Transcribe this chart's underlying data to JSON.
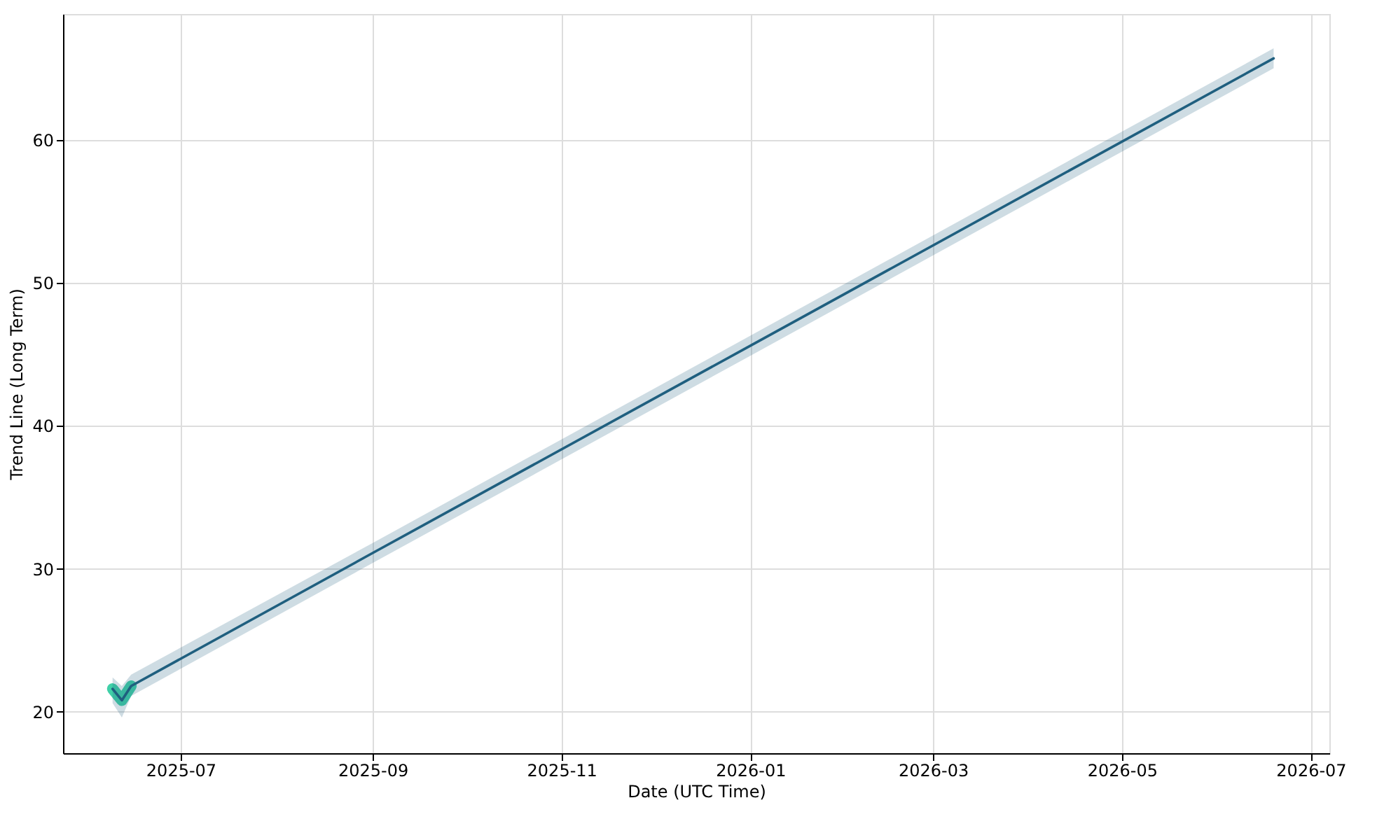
{
  "chart_data": {
    "type": "line",
    "xlabel": "Date (UTC Time)",
    "ylabel": "Trend Line (Long Term)",
    "xlim": [
      "2025-05-24",
      "2026-07-07"
    ],
    "ylim": [
      17.1,
      68.8
    ],
    "xticks": [
      {
        "value": "2025-07-01",
        "label": "2025-07"
      },
      {
        "value": "2025-09-01",
        "label": "2025-09"
      },
      {
        "value": "2025-11-01",
        "label": "2025-11"
      },
      {
        "value": "2026-01-01",
        "label": "2026-01"
      },
      {
        "value": "2026-03-01",
        "label": "2026-03"
      },
      {
        "value": "2026-05-01",
        "label": "2026-05"
      },
      {
        "value": "2026-07-01",
        "label": "2026-07"
      }
    ],
    "yticks": [
      20,
      30,
      40,
      50,
      60
    ],
    "grid": true,
    "line_style": "solid",
    "marker": "none",
    "series": [
      {
        "color": "#40d0a8",
        "x": [
          "2025-06-09",
          "2025-06-12",
          "2025-06-15"
        ],
        "values": [
          21.6,
          20.8,
          21.8
        ]
      },
      {
        "color": "#1f5f7f",
        "x": [
          "2025-06-09",
          "2025-06-12",
          "2025-06-15",
          "2025-09-01",
          "2026-01-01",
          "2026-06-19"
        ],
        "values": [
          21.6,
          20.8,
          21.8,
          31.1,
          45.6,
          65.7
        ],
        "lower": [
          20.6,
          19.6,
          21.1,
          30.4,
          44.9,
          65.0
        ],
        "upper": [
          22.4,
          21.8,
          22.6,
          31.8,
          46.3,
          66.4
        ]
      }
    ]
  }
}
